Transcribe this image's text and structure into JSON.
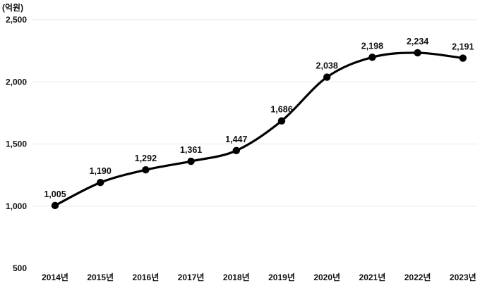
{
  "chart_data": {
    "type": "line",
    "unit_label": "(억원)",
    "categories": [
      "2014년",
      "2015년",
      "2016년",
      "2017년",
      "2018년",
      "2019년",
      "2020년",
      "2021년",
      "2022년",
      "2023년"
    ],
    "values": [
      1005,
      1190,
      1292,
      1361,
      1447,
      1686,
      2038,
      2198,
      2234,
      2191
    ],
    "data_labels": [
      "1,005",
      "1,190",
      "1,292",
      "1,361",
      "1,447",
      "1,686",
      "2,038",
      "2,198",
      "2,234",
      "2,191"
    ],
    "y_ticks": [
      500,
      1000,
      1500,
      2000,
      2500
    ],
    "y_tick_labels": [
      "500",
      "1,000",
      "1,500",
      "2,000",
      "2,500"
    ],
    "ylim": [
      500,
      2500
    ],
    "grid": true,
    "line_color": "#000000",
    "marker_color": "#000000",
    "smooth": true
  }
}
